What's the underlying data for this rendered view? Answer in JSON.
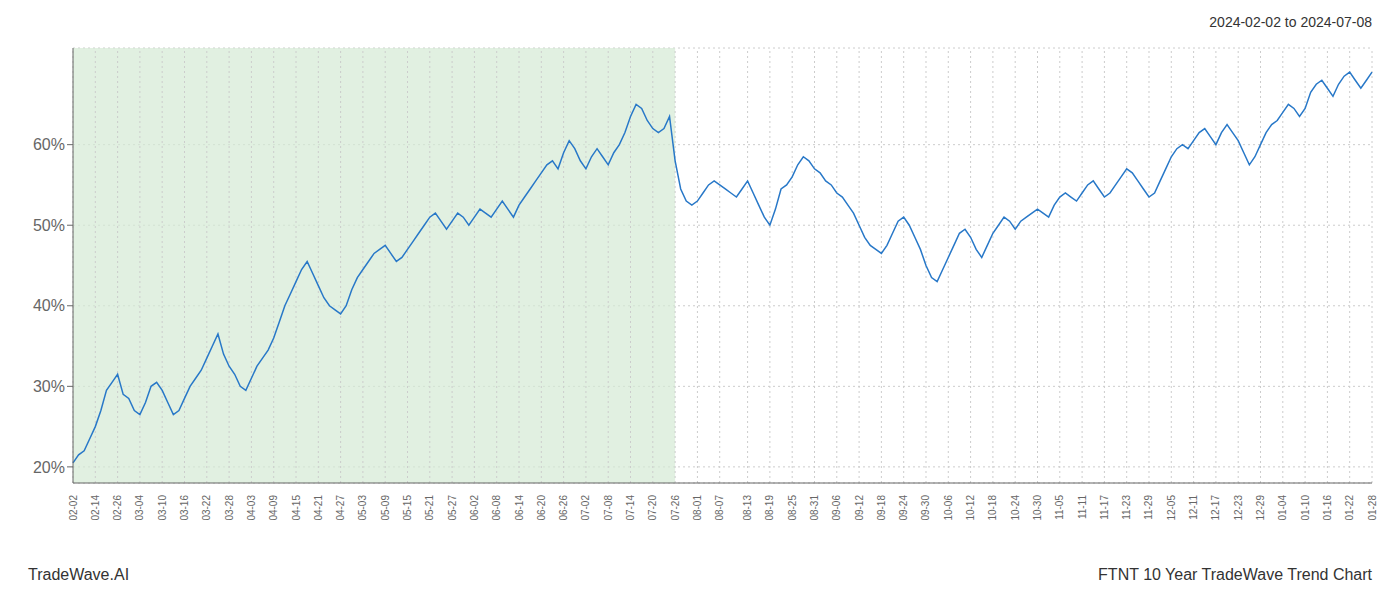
{
  "chart_data": {
    "type": "line",
    "title": "FTNT 10 Year TradeWave Trend Chart",
    "subtitle": "2024-02-02 to 2024-07-08",
    "annotations": [
      "TradeWave.AI"
    ],
    "categories": [
      "02-02",
      null,
      null,
      null,
      "02-14",
      null,
      null,
      null,
      "02-26",
      null,
      null,
      null,
      "03-04",
      null,
      null,
      null,
      "03-10",
      null,
      null,
      null,
      "03-16",
      null,
      null,
      null,
      "03-22",
      null,
      null,
      null,
      "03-28",
      null,
      null,
      null,
      "04-03",
      null,
      null,
      null,
      "04-09",
      null,
      null,
      null,
      "04-15",
      null,
      null,
      null,
      "04-21",
      null,
      null,
      null,
      "04-27",
      null,
      null,
      null,
      "05-03",
      null,
      null,
      null,
      "05-09",
      null,
      null,
      null,
      "05-15",
      null,
      null,
      null,
      "05-21",
      null,
      null,
      null,
      "05-27",
      null,
      null,
      null,
      "06-02",
      null,
      null,
      null,
      "06-08",
      null,
      null,
      null,
      "06-14",
      null,
      null,
      null,
      "06-20",
      null,
      null,
      null,
      "06-26",
      null,
      null,
      null,
      "07-02",
      null,
      null,
      null,
      "07-08",
      null,
      null,
      null,
      "07-14",
      null,
      null,
      null,
      "07-20",
      null,
      null,
      null,
      "07-26",
      null,
      null,
      null,
      "08-01",
      null,
      null,
      null,
      "08-07",
      null,
      null,
      null,
      null,
      "08-13",
      null,
      null,
      null,
      "08-19",
      null,
      null,
      null,
      "08-25",
      null,
      null,
      null,
      "08-31",
      null,
      null,
      null,
      "09-06",
      null,
      null,
      null,
      "09-12",
      null,
      null,
      null,
      "09-18",
      null,
      null,
      null,
      "09-24",
      null,
      null,
      null,
      "09-30",
      null,
      null,
      null,
      "10-06",
      null,
      null,
      null,
      "10-12",
      null,
      null,
      null,
      "10-18",
      null,
      null,
      null,
      "10-24",
      null,
      null,
      null,
      "10-30",
      null,
      null,
      null,
      "11-05",
      null,
      null,
      null,
      "11-11",
      null,
      null,
      null,
      "11-17",
      null,
      null,
      null,
      "11-23",
      null,
      null,
      null,
      "11-29",
      null,
      null,
      null,
      "12-05",
      null,
      null,
      null,
      "12-11",
      null,
      null,
      null,
      "12-17",
      null,
      null,
      null,
      "12-23",
      null,
      null,
      null,
      "12-29",
      null,
      null,
      null,
      "01-04",
      null,
      null,
      null,
      "01-10",
      null,
      null,
      null,
      "01-16",
      null,
      null,
      null,
      "01-22",
      null,
      null,
      null,
      "01-28"
    ],
    "values": [
      20.5,
      21.5,
      22.0,
      23.5,
      25.0,
      27.0,
      29.5,
      30.5,
      31.5,
      29.0,
      28.5,
      27.0,
      26.5,
      28.0,
      30.0,
      30.5,
      29.5,
      28.0,
      26.5,
      27.0,
      28.5,
      30.0,
      31.0,
      32.0,
      33.5,
      35.0,
      36.5,
      34.0,
      32.5,
      31.5,
      30.0,
      29.5,
      31.0,
      32.5,
      33.5,
      34.5,
      36.0,
      38.0,
      40.0,
      41.5,
      43.0,
      44.5,
      45.5,
      44.0,
      42.5,
      41.0,
      40.0,
      39.5,
      39.0,
      40.0,
      42.0,
      43.5,
      44.5,
      45.5,
      46.5,
      47.0,
      47.5,
      46.5,
      45.5,
      46.0,
      47.0,
      48.0,
      49.0,
      50.0,
      51.0,
      51.5,
      50.5,
      49.5,
      50.5,
      51.5,
      51.0,
      50.0,
      51.0,
      52.0,
      51.5,
      51.0,
      52.0,
      53.0,
      52.0,
      51.0,
      52.5,
      53.5,
      54.5,
      55.5,
      56.5,
      57.5,
      58.0,
      57.0,
      59.0,
      60.5,
      59.5,
      58.0,
      57.0,
      58.5,
      59.5,
      58.5,
      57.5,
      59.0,
      60.0,
      61.5,
      63.5,
      65.0,
      64.5,
      63.0,
      62.0,
      61.5,
      62.0,
      63.5,
      58.0,
      54.5,
      53.0,
      52.5,
      53.0,
      54.0,
      55.0,
      55.5,
      55.0,
      54.5,
      54.0,
      53.5,
      54.5,
      55.5,
      54.0,
      52.5,
      51.0,
      50.0,
      52.0,
      54.5,
      55.0,
      56.0,
      57.5,
      58.5,
      58.0,
      57.0,
      56.5,
      55.5,
      55.0,
      54.0,
      53.5,
      52.5,
      51.5,
      50.0,
      48.5,
      47.5,
      47.0,
      46.5,
      47.5,
      49.0,
      50.5,
      51.0,
      50.0,
      48.5,
      47.0,
      45.0,
      43.5,
      43.0,
      44.5,
      46.0,
      47.5,
      49.0,
      49.5,
      48.5,
      47.0,
      46.0,
      47.5,
      49.0,
      50.0,
      51.0,
      50.5,
      49.5,
      50.5,
      51.0,
      51.5,
      52.0,
      51.5,
      51.0,
      52.5,
      53.5,
      54.0,
      53.5,
      53.0,
      54.0,
      55.0,
      55.5,
      54.5,
      53.5,
      54.0,
      55.0,
      56.0,
      57.0,
      56.5,
      55.5,
      54.5,
      53.5,
      54.0,
      55.5,
      57.0,
      58.5,
      59.5,
      60.0,
      59.5,
      60.5,
      61.5,
      62.0,
      61.0,
      60.0,
      61.5,
      62.5,
      61.5,
      60.5,
      59.0,
      57.5,
      58.5,
      60.0,
      61.5,
      62.5,
      63.0,
      64.0,
      65.0,
      64.5,
      63.5,
      64.5,
      66.5,
      67.5,
      68.0,
      67.0,
      66.0,
      67.5,
      68.5,
      69.0,
      68.0,
      67.0,
      68.0,
      69.0
    ],
    "color": "#2878c8",
    "ylim": [
      18,
      72
    ],
    "yticks": [
      {
        "value": 20,
        "label": "20%"
      },
      {
        "value": 30,
        "label": "30%"
      },
      {
        "value": 40,
        "label": "40%"
      },
      {
        "value": 50,
        "label": "50%"
      },
      {
        "value": 60,
        "label": "60%"
      }
    ],
    "grid": true,
    "shaded_region": {
      "start": "02-02",
      "end": "07-26",
      "color": "#d4ead4"
    }
  }
}
